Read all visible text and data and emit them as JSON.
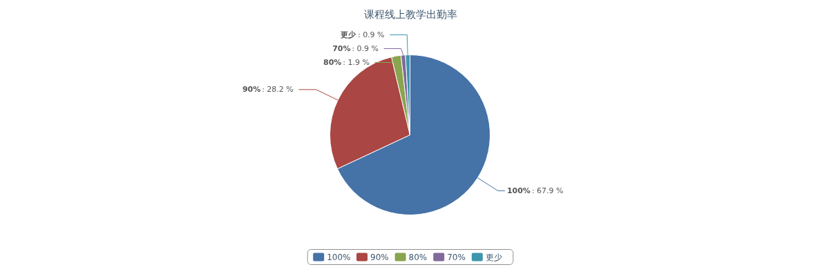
{
  "chart_data": {
    "type": "pie",
    "title": "课程线上教学出勤率",
    "categories": [
      "100%",
      "90%",
      "80%",
      "70%",
      "更少"
    ],
    "values": [
      67.9,
      28.2,
      1.9,
      0.9,
      0.9
    ],
    "colors": [
      "#4572a7",
      "#aa4643",
      "#89a54e",
      "#80699b",
      "#3d96ae"
    ],
    "value_labels": [
      ": 67.9 %",
      ": 28.2 %",
      ": 1.9 %",
      ": 0.9 %",
      ": 0.9 %"
    ],
    "legend": "bottom"
  }
}
